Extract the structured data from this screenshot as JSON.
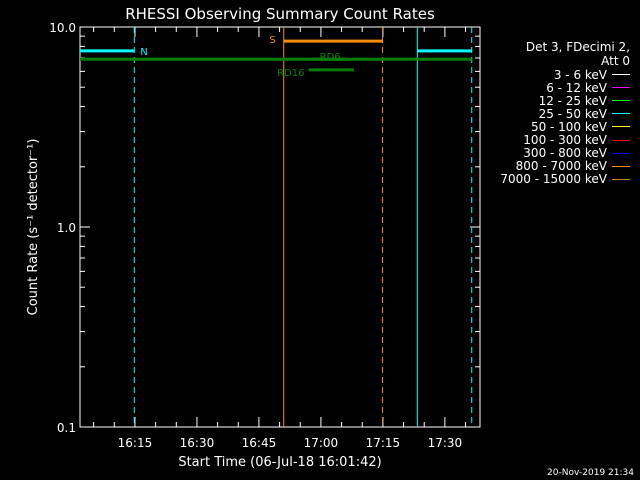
{
  "chart_data": {
    "type": "line",
    "title": "RHESSI Observing Summary Count Rates",
    "xlabel": "Start Time (06-Jul-18 16:01:42)",
    "ylabel": "Count Rate (s⁻¹ detector⁻¹)",
    "yscale": "log",
    "ylim": [
      0.1,
      10
    ],
    "xlim": [
      "16:01:42",
      "17:38:30"
    ],
    "x_ticks": [
      "16:15",
      "16:30",
      "16:45",
      "17:00",
      "17:15",
      "17:30"
    ],
    "y_ticks": [
      "0.1",
      "1.0",
      "10.0"
    ],
    "grid": false,
    "legend_position": "right",
    "legend_header": [
      "Det 3, FDecimi 2,",
      "Att 0"
    ],
    "series": [
      {
        "name": "3 - 6 keV",
        "color": "#ffffff"
      },
      {
        "name": "6 - 12 keV",
        "color": "#ff00ff"
      },
      {
        "name": "12 - 25 keV",
        "color": "#00ff00"
      },
      {
        "name": "25 - 50 keV",
        "color": "#00ffff"
      },
      {
        "name": "50 - 100 keV",
        "color": "#ffff00"
      },
      {
        "name": "100 - 300 keV",
        "color": "#ff0000"
      },
      {
        "name": "300 - 800 keV",
        "color": "#0000ff"
      },
      {
        "name": "800 - 7000 keV",
        "color": "#ff8c00"
      },
      {
        "name": "7000 - 15000 keV",
        "color": "#b8860b"
      }
    ],
    "flag_bars": [
      {
        "label": "N",
        "color": "#00ffff",
        "y": 7.6,
        "segments": [
          [
            "16:01:42",
            "16:14:50"
          ],
          [
            "17:23:20",
            "17:36:30"
          ]
        ]
      },
      {
        "label": "S",
        "color": "#ff8c00",
        "y": 8.5,
        "segments": [
          [
            "16:51:00",
            "17:14:55"
          ]
        ]
      },
      {
        "label": "",
        "color": "#008000",
        "y": 6.9,
        "segments": [
          [
            "16:01:42",
            "17:36:30"
          ]
        ]
      },
      {
        "label": "RD6",
        "color": "#008000",
        "y": 6.9,
        "segments": [
          [
            "16:57:00",
            "17:06:30"
          ]
        ]
      },
      {
        "label": "RD16",
        "color": "#008000",
        "y": 6.1,
        "segments": [
          [
            "16:57:00",
            "17:08:00"
          ]
        ]
      }
    ],
    "vlines": [
      {
        "time": "16:14:50",
        "color": "#00ffff",
        "style": "dashed"
      },
      {
        "time": "16:51:00",
        "color": "#ff8c00",
        "style": "solid"
      },
      {
        "time": "17:14:55",
        "color": "#ff8c00",
        "style": "dashed"
      },
      {
        "time": "17:23:20",
        "color": "#00ffff",
        "style": "solid"
      },
      {
        "time": "17:36:30",
        "color": "#00ffff",
        "style": "dashed"
      }
    ]
  },
  "footer_date": "20-Nov-2019 21:34"
}
